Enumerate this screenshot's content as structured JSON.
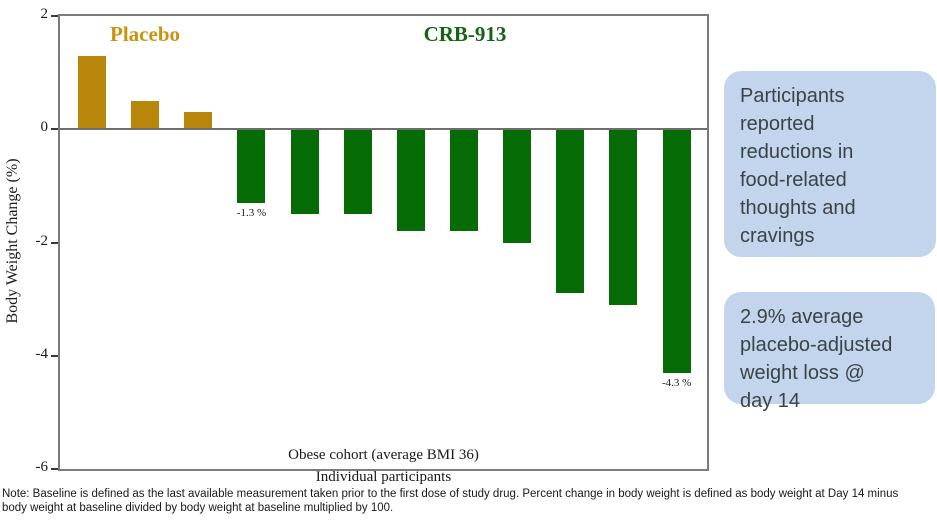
{
  "chart_data": {
    "type": "bar",
    "title": "",
    "ylabel": "Body Weight Change (%)",
    "xlabel": "Individual participants",
    "inner_caption": "Obese cohort (average BMI 36)",
    "ylim": [
      -6,
      2
    ],
    "yticks": [
      2,
      0,
      -2,
      -4,
      -6
    ],
    "grid": false,
    "legend_position": "in-plot group titles",
    "groups": [
      {
        "name": "Placebo",
        "bar_color": "#b8860b",
        "title_color": "#c8940e"
      },
      {
        "name": "CRB-913",
        "bar_color": "#056b05",
        "title_color": "#146414"
      }
    ],
    "bars": [
      {
        "group": "Placebo",
        "value": 1.3
      },
      {
        "group": "Placebo",
        "value": 0.5
      },
      {
        "group": "Placebo",
        "value": 0.3
      },
      {
        "group": "CRB-913",
        "value": -1.3,
        "label": "-1.3 %"
      },
      {
        "group": "CRB-913",
        "value": -1.5
      },
      {
        "group": "CRB-913",
        "value": -1.5
      },
      {
        "group": "CRB-913",
        "value": -1.8
      },
      {
        "group": "CRB-913",
        "value": -1.8
      },
      {
        "group": "CRB-913",
        "value": -2.0
      },
      {
        "group": "CRB-913",
        "value": -2.9
      },
      {
        "group": "CRB-913",
        "value": -3.1
      },
      {
        "group": "CRB-913",
        "value": -4.3,
        "label": "-4.3 %"
      }
    ]
  },
  "callouts": [
    {
      "text": "Participants\nreported\nreductions in\nfood-related\nthoughts and\ncravings",
      "bg": "#c2d5ec",
      "text_color": "#3c4347"
    },
    {
      "text": "2.9% average\nplacebo-adjusted\nweight loss @\nday 14",
      "bg": "#c2d5ec",
      "text_color": "#3c4347"
    }
  ],
  "note": "Note: Baseline is defined as the last available measurement taken prior to the first dose of study drug. Percent change in body weight is defined as body weight at Day 14 minus\nbody weight at baseline divided by body weight at baseline multiplied by 100."
}
